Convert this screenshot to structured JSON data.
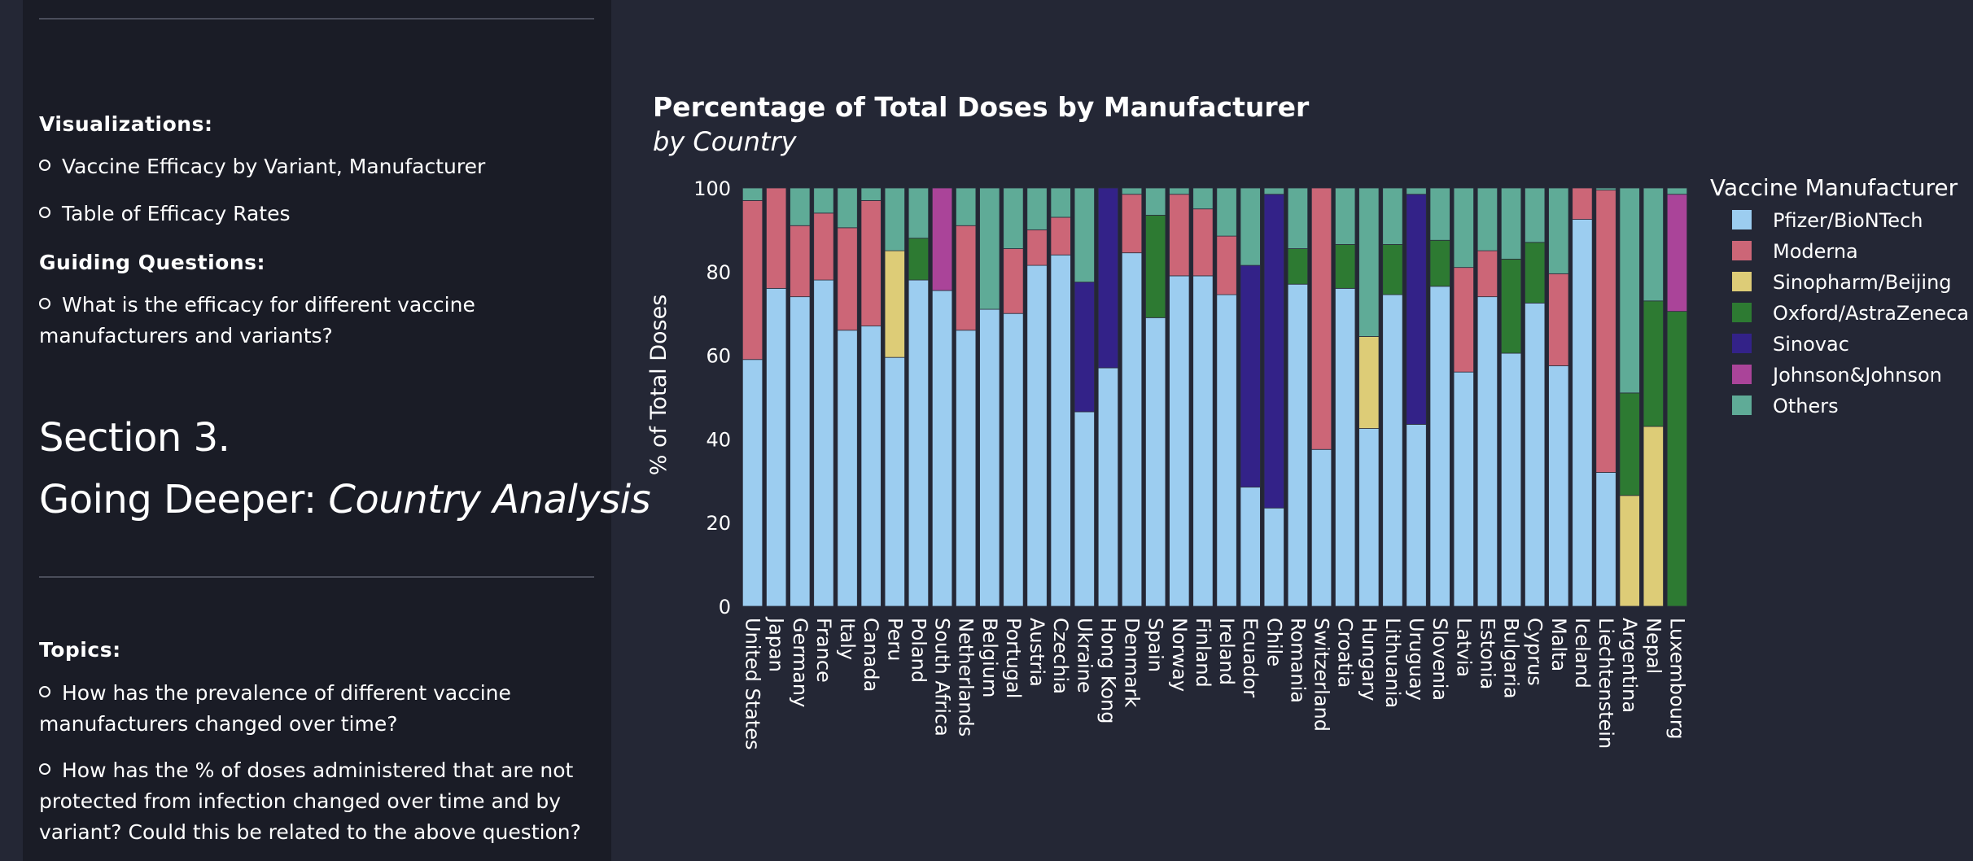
{
  "sidebar": {
    "visualizations_heading": "Visualizations:",
    "visualizations": [
      "Vaccine Efficacy by Variant, Manufacturer",
      "Table of Efficacy Rates"
    ],
    "guiding_heading": "Guiding Questions:",
    "guiding": [
      "What is the efficacy for different vaccine manufacturers and variants?"
    ],
    "section_number": "Section 3.",
    "section_title_prefix": "Going Deeper: ",
    "section_title_italic": "Country Analysis",
    "topics_heading": "Topics:",
    "topics": [
      "How has the prevalence of different vaccine manufacturers changed over time?",
      "How has the % of doses administered that are not protected from infection changed over time and by variant? Could this be related to the above question?"
    ]
  },
  "chart_data": {
    "type": "bar",
    "stacked": true,
    "title": "Percentage of Total Doses by Manufacturer",
    "subtitle": "by Country",
    "ylabel": "% of Total Doses",
    "xlabel": "",
    "ylim": [
      0,
      100
    ],
    "yticks": [
      0,
      20,
      40,
      60,
      80,
      100
    ],
    "legend_title": "Vaccine Manufacturer",
    "legend_position": "right",
    "categories": [
      "United States",
      "Japan",
      "Germany",
      "France",
      "Italy",
      "Canada",
      "Peru",
      "Poland",
      "South Africa",
      "Netherlands",
      "Belgium",
      "Portugal",
      "Austria",
      "Czechia",
      "Ukraine",
      "Hong Kong",
      "Denmark",
      "Spain",
      "Norway",
      "Finland",
      "Ireland",
      "Ecuador",
      "Chile",
      "Romania",
      "Switzerland",
      "Croatia",
      "Hungary",
      "Lithuania",
      "Uruguay",
      "Slovenia",
      "Latvia",
      "Estonia",
      "Bulgaria",
      "Cyprus",
      "Malta",
      "Iceland",
      "Liechtenstein",
      "Argentina",
      "Nepal",
      "Luxembourg"
    ],
    "series": [
      {
        "name": "Pfizer/BioNTech",
        "color": "#9ccdf0",
        "values": [
          59,
          76,
          74,
          78,
          66,
          67,
          59.5,
          78,
          75.5,
          66,
          71,
          70,
          81.5,
          84,
          46.5,
          57,
          84.5,
          69,
          79,
          79,
          74.5,
          28.5,
          23.5,
          77,
          37.5,
          76,
          42.5,
          74.5,
          43.5,
          76.5,
          56,
          74,
          60.5,
          72.5,
          57.5,
          92.5,
          32,
          0,
          0,
          0
        ]
      },
      {
        "name": "Moderna",
        "color": "#cc6677",
        "values": [
          38,
          24,
          17,
          16,
          24.5,
          30,
          0,
          0,
          0,
          25,
          0,
          15.5,
          8.5,
          9,
          0,
          0,
          14,
          0,
          19.5,
          16,
          14,
          0,
          0,
          0,
          62.5,
          0,
          0,
          0,
          0,
          0,
          25,
          11,
          0,
          0,
          22,
          7.5,
          67.5,
          0,
          0,
          0
        ]
      },
      {
        "name": "Sinopharm/Beijing",
        "color": "#ddcc77",
        "values": [
          0,
          0,
          0,
          0,
          0,
          0,
          25.5,
          0,
          0,
          0,
          0,
          0,
          0,
          0,
          0,
          0,
          0,
          0,
          0,
          0,
          0,
          0,
          0,
          0,
          0,
          0,
          22,
          0,
          0,
          0,
          0,
          0,
          0,
          0,
          0,
          0,
          0,
          26.5,
          43,
          0
        ]
      },
      {
        "name": "Oxford/AstraZeneca",
        "color": "#2d7a32",
        "values": [
          0,
          0,
          0,
          0,
          0,
          0,
          0,
          10,
          0,
          0,
          0,
          0,
          0,
          0,
          0,
          0,
          0,
          24.5,
          0,
          0,
          0,
          0,
          0,
          8.5,
          0,
          10.5,
          0,
          12,
          0,
          11,
          0,
          0,
          22.5,
          14.5,
          0,
          0,
          0,
          24.5,
          30,
          70.5
        ]
      },
      {
        "name": "Sinovac",
        "color": "#332288",
        "values": [
          0,
          0,
          0,
          0,
          0,
          0,
          0,
          0,
          0,
          0,
          0,
          0,
          0,
          0,
          31,
          43,
          0,
          0,
          0,
          0,
          0,
          53,
          75,
          0,
          0,
          0,
          0,
          0,
          55,
          0,
          0,
          0,
          0,
          0,
          0,
          0,
          0,
          0,
          0,
          0
        ]
      },
      {
        "name": "Johnson&Johnson",
        "color": "#aa4499",
        "values": [
          0,
          0,
          0,
          0,
          0,
          0,
          0,
          0,
          24.5,
          0,
          0,
          0,
          0,
          0,
          0,
          0,
          0,
          0,
          0,
          0,
          0,
          0,
          0,
          0,
          0,
          0,
          0,
          0,
          0,
          0,
          0,
          0,
          0,
          0,
          0,
          0,
          0,
          0,
          0,
          28
        ]
      },
      {
        "name": "Others",
        "color": "#5fab97",
        "values": [
          3,
          0,
          9,
          6,
          9.5,
          3,
          15,
          12,
          0,
          9,
          29,
          14.5,
          10,
          7,
          22.5,
          0,
          1.5,
          6.5,
          1.5,
          5,
          11.5,
          18.5,
          1.5,
          14.5,
          0,
          13.5,
          35.5,
          13.5,
          1.5,
          12.5,
          19,
          15,
          17,
          13,
          20.5,
          0,
          0.5,
          49,
          27,
          1.5
        ]
      }
    ]
  }
}
